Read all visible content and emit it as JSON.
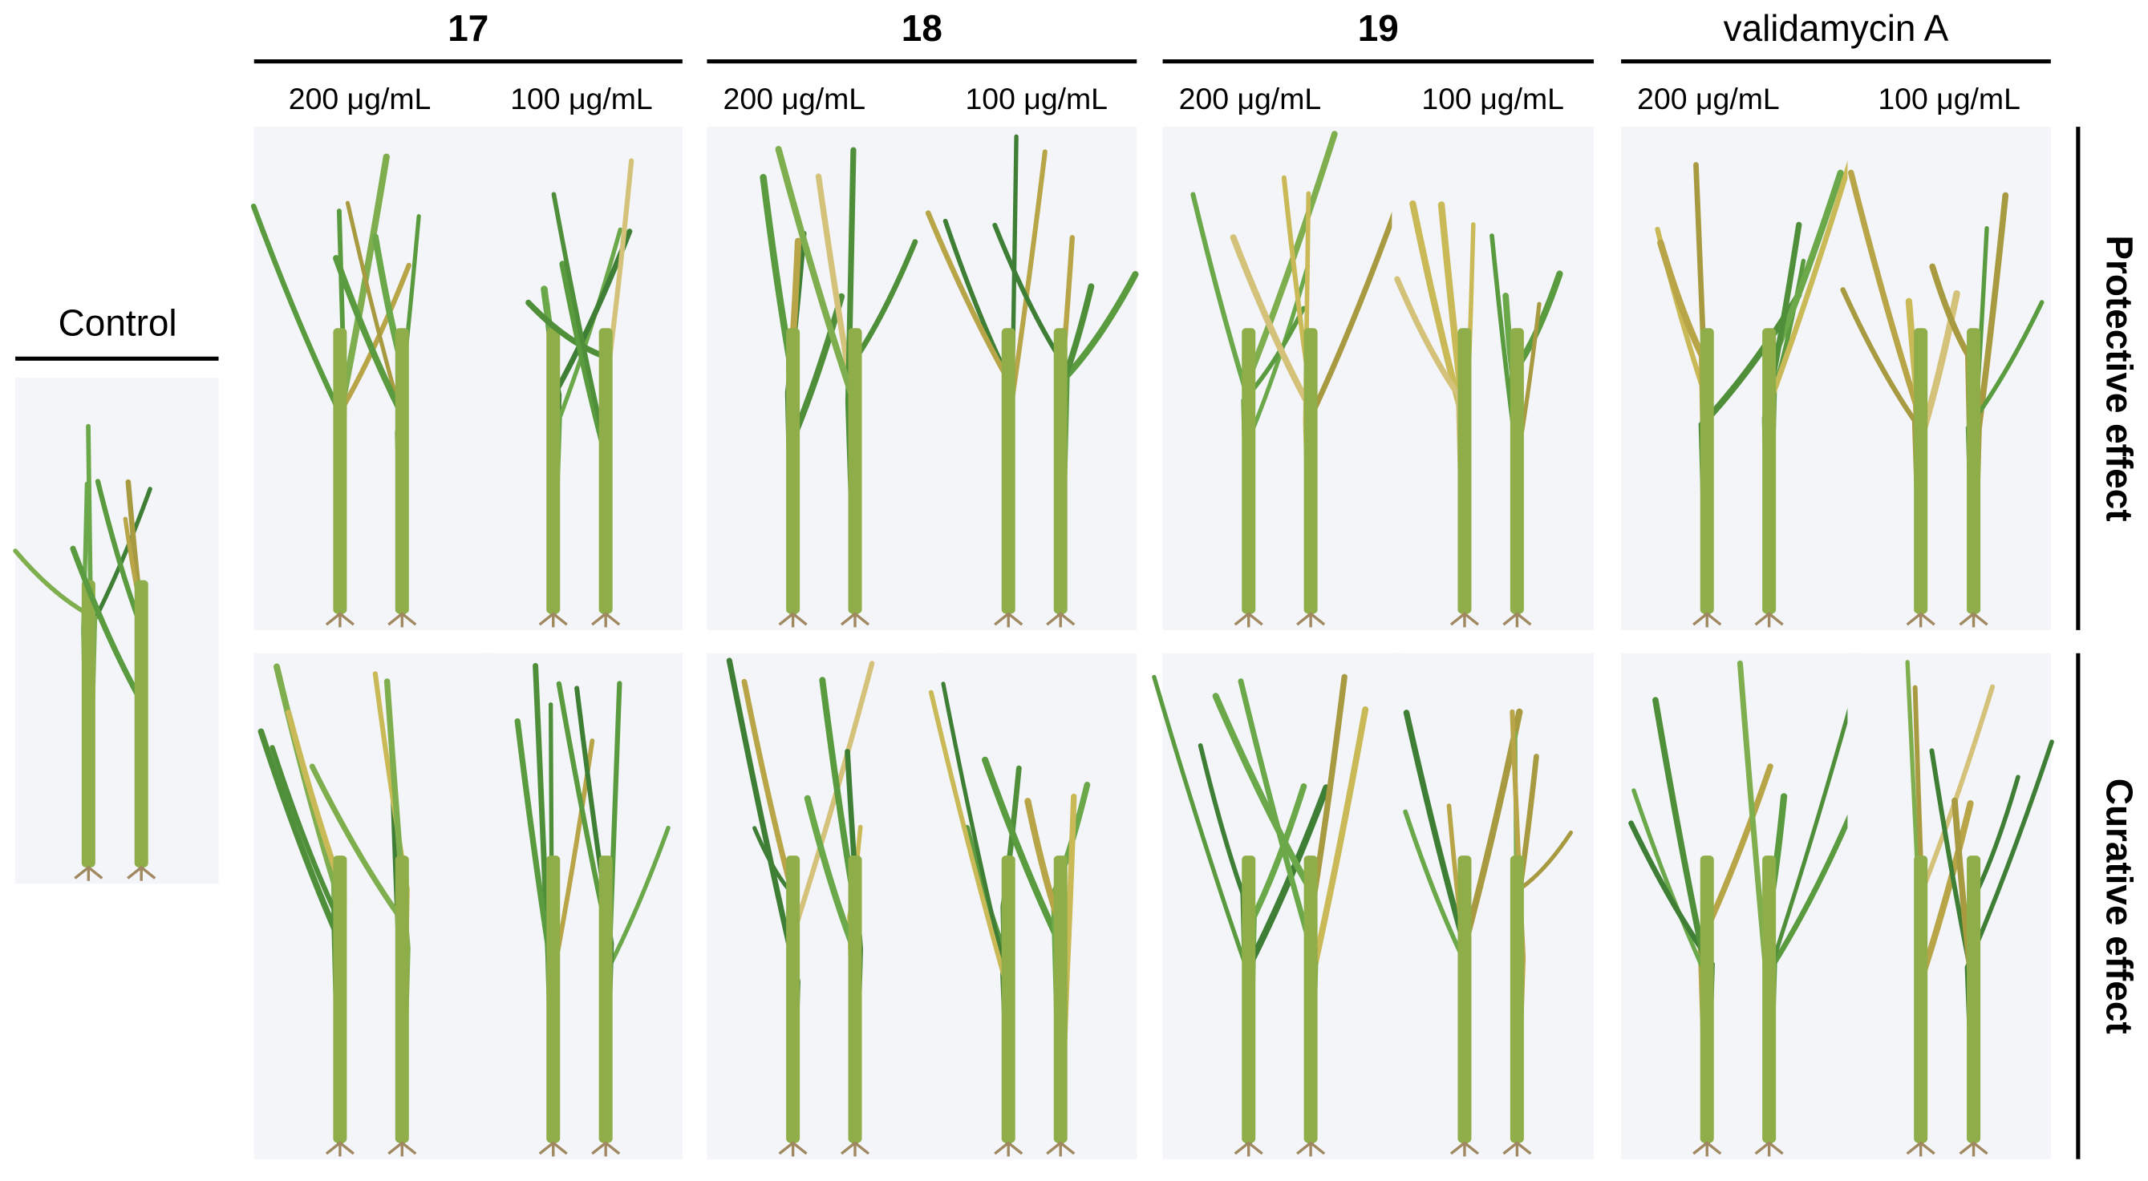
{
  "control": {
    "label": "Control"
  },
  "groups": [
    {
      "label": "17",
      "bold": true,
      "concentrations": [
        "200 μg/mL",
        "100 μg/mL"
      ]
    },
    {
      "label": "18",
      "bold": true,
      "concentrations": [
        "200 μg/mL",
        "100 μg/mL"
      ]
    },
    {
      "label": "19",
      "bold": true,
      "concentrations": [
        "200 μg/mL",
        "100 μg/mL"
      ]
    },
    {
      "label": "validamycin A",
      "bold": false,
      "concentrations": [
        "200 μg/mL",
        "100 μg/mL"
      ]
    }
  ],
  "rows": [
    {
      "label": "Protective effect"
    },
    {
      "label": "Curative effect"
    }
  ]
}
